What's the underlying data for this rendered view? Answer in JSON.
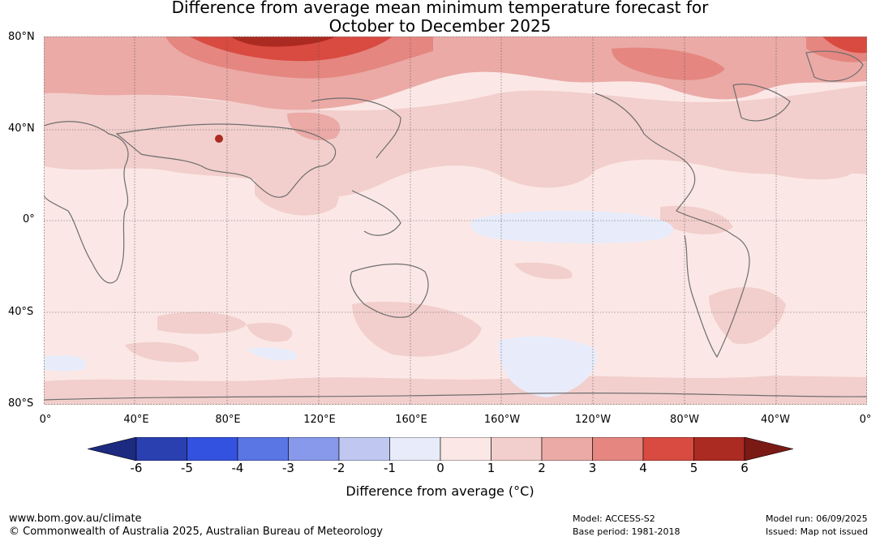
{
  "title_line1": "Difference from average mean minimum temperature forecast for",
  "title_line2": "October to December 2025",
  "lat_labels": [
    "80°N",
    "40°N",
    "0°",
    "40°S",
    "80°S"
  ],
  "lon_labels": [
    "0°",
    "40°E",
    "80°E",
    "120°E",
    "160°E",
    "160°W",
    "120°W",
    "80°W",
    "40°W",
    "0°"
  ],
  "colorbar": {
    "ticks": [
      "-6",
      "-5",
      "-4",
      "-3",
      "-2",
      "-1",
      "0",
      "1",
      "2",
      "3",
      "4",
      "5",
      "6"
    ],
    "colors": [
      "#1c2a80",
      "#2a40b0",
      "#3452e0",
      "#5a75e4",
      "#8898ea",
      "#c0c8f2",
      "#e8ecfa",
      "#fbe8e6",
      "#f2cfcc",
      "#ebaaa6",
      "#e58680",
      "#d94a40",
      "#ab2a22",
      "#7a1a14"
    ],
    "label": "Difference from average (°C)"
  },
  "footer": {
    "url": "www.bom.gov.au/climate",
    "copyright": "© Commonwealth of Australia 2025, Australian Bureau of Meteorology",
    "model": "Model: ACCESS-S2",
    "base_period": "Base period: 1981-2018",
    "model_run": "Model run: 06/09/2025",
    "issued": "Issued: Map not issued"
  },
  "land_outline_color": "#6e6e6e"
}
